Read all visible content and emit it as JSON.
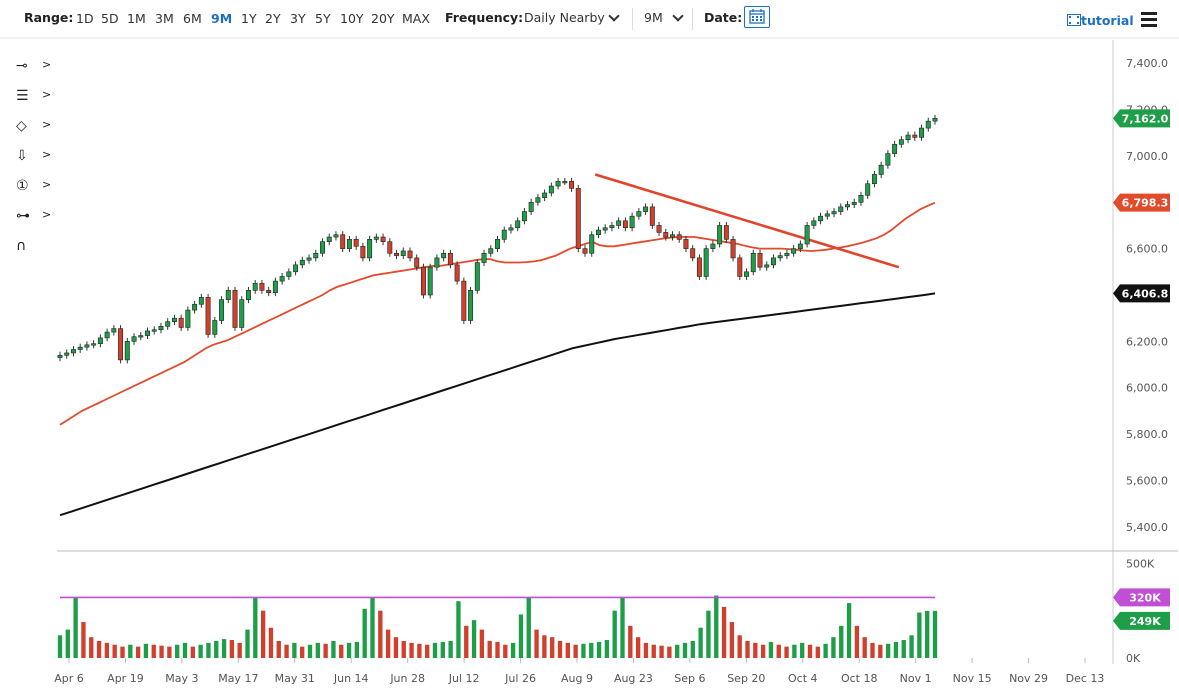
{
  "toolbar": {
    "range_label": "Range:",
    "ranges": [
      "1D",
      "5D",
      "1M",
      "3M",
      "6M",
      "9M",
      "1Y",
      "2Y",
      "3Y",
      "5Y",
      "10Y",
      "20Y",
      "MAX"
    ],
    "active_range": "9M",
    "frequency_label": "Frequency:",
    "frequency_value": "Daily Nearby",
    "period_value": "9M",
    "date_label": "Date:",
    "tutorial_label": "tutorial"
  },
  "tools": {
    "items": [
      {
        "icon": "line-tool-icon",
        "glyph": "⊸"
      },
      {
        "icon": "fib-levels-icon",
        "glyph": "☰"
      },
      {
        "icon": "shapes-icon",
        "glyph": "◇"
      },
      {
        "icon": "arrow-down-icon",
        "glyph": "⇩"
      },
      {
        "icon": "annotation-number-icon",
        "glyph": "①"
      },
      {
        "icon": "measure-icon",
        "glyph": "⊶"
      },
      {
        "icon": "magnet-icon",
        "glyph": "∩"
      }
    ]
  },
  "colors": {
    "up": "#1e9e48",
    "down": "#d0402c",
    "ma50": "#e24a2c",
    "ma200": "#111111",
    "trendline": "#e0442a",
    "volume_ma": "#c04fd4",
    "current_price": "#1e9e48",
    "ma50_tag": "#e24a2c",
    "ma200_tag": "#111111",
    "accent": "#1d6fc4"
  },
  "chart_data": {
    "type": "candlestick",
    "frequency": "Daily",
    "price_axis": {
      "ylim": [
        5300,
        7500
      ],
      "ticks": [
        "7,400.0",
        "7,200.0",
        "7,000.0",
        "6,800.0",
        "6,600.0",
        "6,400.0",
        "6,200.0",
        "6,000.0",
        "5,800.0",
        "5,600.0",
        "5,400.0"
      ],
      "tick_values": [
        7400,
        7200,
        7000,
        6800,
        6600,
        6400,
        6200,
        6000,
        5800,
        5600,
        5400
      ]
    },
    "x_axis": {
      "ticks": [
        "Apr 6",
        "Apr 19",
        "May 3",
        "May 17",
        "May 31",
        "Jun 14",
        "Jun 28",
        "Jul 12",
        "Jul 26",
        "Aug 9",
        "Aug 23",
        "Sep 6",
        "Sep 20",
        "Oct 4",
        "Oct 18",
        "Nov 1",
        "Nov 15",
        "Nov 29",
        "Dec 13"
      ]
    },
    "price_tags": [
      {
        "label": "7,162.0",
        "value": 7162,
        "series": "last price"
      },
      {
        "label": "6,798.3",
        "value": 6798.3,
        "series": "50-day MA"
      },
      {
        "label": "6,406.8",
        "value": 6406.8,
        "series": "200-day MA"
      }
    ],
    "close_series": [
      6140,
      6150,
      6165,
      6175,
      6185,
      6190,
      6215,
      6240,
      6255,
      6120,
      6200,
      6220,
      6225,
      6245,
      6250,
      6265,
      6285,
      6300,
      6260,
      6335,
      6360,
      6390,
      6230,
      6290,
      6380,
      6420,
      6260,
      6380,
      6420,
      6450,
      6420,
      6410,
      6460,
      6480,
      6500,
      6530,
      6550,
      6560,
      6580,
      6630,
      6650,
      6660,
      6600,
      6640,
      6610,
      6560,
      6640,
      6650,
      6630,
      6580,
      6570,
      6590,
      6560,
      6520,
      6400,
      6520,
      6560,
      6580,
      6530,
      6460,
      6290,
      6420,
      6540,
      6580,
      6600,
      6640,
      6680,
      6690,
      6720,
      6760,
      6800,
      6820,
      6840,
      6870,
      6890,
      6890,
      6860,
      6600,
      6580,
      6660,
      6680,
      6690,
      6700,
      6720,
      6690,
      6740,
      6760,
      6780,
      6700,
      6670,
      6650,
      6660,
      6640,
      6600,
      6560,
      6480,
      6600,
      6620,
      6700,
      6640,
      6560,
      6480,
      6500,
      6580,
      6520,
      6530,
      6560,
      6570,
      6580,
      6600,
      6620,
      6700,
      6720,
      6740,
      6750,
      6760,
      6780,
      6790,
      6800,
      6830,
      6880,
      6920,
      6960,
      7010,
      7050,
      7070,
      7090,
      7080,
      7120,
      7150,
      7162
    ],
    "ma50_series": [
      5840,
      5860,
      5880,
      5900,
      5915,
      5930,
      5945,
      5960,
      5975,
      5990,
      6005,
      6020,
      6035,
      6050,
      6065,
      6080,
      6095,
      6110,
      6130,
      6150,
      6170,
      6185,
      6195,
      6205,
      6220,
      6235,
      6250,
      6265,
      6280,
      6295,
      6310,
      6325,
      6340,
      6355,
      6370,
      6385,
      6400,
      6420,
      6435,
      6445,
      6455,
      6465,
      6475,
      6485,
      6490,
      6495,
      6500,
      6505,
      6510,
      6515,
      6520,
      6525,
      6525,
      6530,
      6535,
      6540,
      6545,
      6550,
      6555,
      6555,
      6545,
      6540,
      6540,
      6540,
      6542,
      6545,
      6550,
      6560,
      6570,
      6585,
      6600,
      6610,
      6620,
      6630,
      6615,
      6610,
      6610,
      6615,
      6620,
      6625,
      6630,
      6635,
      6640,
      6645,
      6648,
      6650,
      6650,
      6650,
      6645,
      6640,
      6635,
      6630,
      6625,
      6620,
      6612,
      6605,
      6600,
      6600,
      6600,
      6600,
      6598,
      6595,
      6592,
      6590,
      6592,
      6595,
      6600,
      6605,
      6610,
      6618,
      6625,
      6635,
      6645,
      6660,
      6680,
      6705,
      6730,
      6750,
      6770,
      6785,
      6798.3
    ],
    "ma200_series": [
      5450,
      5465,
      5480,
      5495,
      5510,
      5525,
      5540,
      5555,
      5570,
      5585,
      5600,
      5615,
      5630,
      5645,
      5660,
      5675,
      5690,
      5705,
      5720,
      5735,
      5750,
      5765,
      5780,
      5795,
      5810,
      5825,
      5840,
      5855,
      5870,
      5885,
      5900,
      5915,
      5930,
      5945,
      5960,
      5975,
      5990,
      6005,
      6020,
      6035,
      6050,
      6065,
      6080,
      6095,
      6110,
      6125,
      6140,
      6155,
      6170,
      6180,
      6190,
      6200,
      6210,
      6218,
      6226,
      6234,
      6242,
      6250,
      6258,
      6266,
      6274,
      6280,
      6286,
      6292,
      6298,
      6304,
      6310,
      6316,
      6322,
      6328,
      6334,
      6340,
      6346,
      6352,
      6358,
      6364,
      6370,
      6376,
      6382,
      6388,
      6394,
      6400,
      6406.8
    ],
    "trendline": {
      "start": {
        "x": "Aug 14",
        "y": 6920
      },
      "end": {
        "x": "Oct 28",
        "y": 6520
      }
    },
    "volume": {
      "axis_ticks": [
        "500K",
        "320K",
        "249K",
        "0K"
      ],
      "ylim": [
        0,
        560000
      ],
      "tags": [
        {
          "label": "320K",
          "value": 320000,
          "series": "volume MA"
        },
        {
          "label": "249K",
          "value": 249000,
          "series": "last volume"
        }
      ],
      "values": [
        120000,
        150000,
        320000,
        190000,
        110000,
        90000,
        80000,
        70000,
        60000,
        70000,
        60000,
        75000,
        70000,
        65000,
        60000,
        70000,
        80000,
        60000,
        70000,
        80000,
        90000,
        100000,
        95000,
        80000,
        150000,
        320000,
        250000,
        160000,
        90000,
        70000,
        80000,
        60000,
        70000,
        80000,
        75000,
        90000,
        70000,
        80000,
        85000,
        260000,
        320000,
        250000,
        150000,
        110000,
        90000,
        80000,
        75000,
        70000,
        80000,
        85000,
        90000,
        300000,
        170000,
        200000,
        150000,
        90000,
        85000,
        70000,
        80000,
        230000,
        320000,
        150000,
        120000,
        110000,
        90000,
        80000,
        70000,
        75000,
        80000,
        85000,
        95000,
        250000,
        320000,
        170000,
        110000,
        80000,
        70000,
        65000,
        60000,
        70000,
        80000,
        90000,
        160000,
        250000,
        330000,
        270000,
        190000,
        120000,
        90000,
        80000,
        70000,
        85000,
        70000,
        60000,
        70000,
        80000,
        70000,
        60000,
        75000,
        110000,
        170000,
        290000,
        170000,
        110000,
        80000,
        70000,
        75000,
        85000,
        95000,
        120000,
        240000,
        249000,
        249000
      ]
    }
  }
}
